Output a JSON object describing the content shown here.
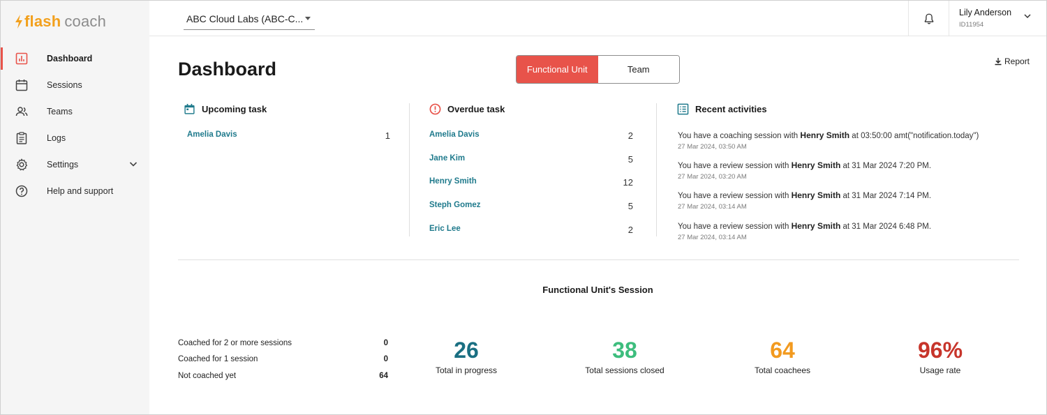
{
  "brand": {
    "flash": "flash",
    "coach": "coach",
    "flash_color": "#f2a01d",
    "coach_color": "#8c8c8c"
  },
  "accent_color": "#e8534a",
  "sidebar": {
    "items": [
      {
        "label": "Dashboard",
        "icon": "bar-chart-icon",
        "active": true
      },
      {
        "label": "Sessions",
        "icon": "calendar-icon"
      },
      {
        "label": "Teams",
        "icon": "people-icon"
      },
      {
        "label": "Logs",
        "icon": "clipboard-icon"
      },
      {
        "label": "Settings",
        "icon": "gear-icon",
        "expandable": true
      },
      {
        "label": "Help and support",
        "icon": "help-circle-icon"
      }
    ]
  },
  "topbar": {
    "org_selected": "ABC Cloud Labs (ABC-C...",
    "user_name": "Lily Anderson",
    "user_id": "ID11954"
  },
  "header": {
    "title": "Dashboard",
    "toggle": {
      "active": "Functional Unit",
      "inactive": "Team"
    },
    "report_label": "Report"
  },
  "upcoming": {
    "title": "Upcoming task",
    "rows": [
      {
        "name": "Amelia Davis",
        "count": "1"
      }
    ]
  },
  "overdue": {
    "title": "Overdue task",
    "rows": [
      {
        "name": "Amelia Davis",
        "count": "2"
      },
      {
        "name": "Jane Kim",
        "count": "5"
      },
      {
        "name": "Henry Smith",
        "count": "12"
      },
      {
        "name": "Steph Gomez",
        "count": "5"
      },
      {
        "name": "Eric Lee",
        "count": "2"
      }
    ]
  },
  "recent": {
    "title": "Recent activities",
    "items": [
      {
        "pre": "You have a coaching session with",
        "who": "Henry Smith",
        "post": "at 03:50:00 amt(\"notification.today\")",
        "time": "27 Mar 2024, 03:50 AM"
      },
      {
        "pre": "You have a review session with",
        "who": "Henry Smith",
        "post": "at 31 Mar 2024 7:20 PM.",
        "time": "27 Mar 2024, 03:20 AM"
      },
      {
        "pre": "You have a review session with",
        "who": "Henry Smith",
        "post": "at 31 Mar 2024 7:14 PM.",
        "time": "27 Mar 2024, 03:14 AM"
      },
      {
        "pre": "You have a review session with",
        "who": "Henry Smith",
        "post": "at 31 Mar 2024 6:48 PM.",
        "time": "27 Mar 2024, 03:14 AM"
      }
    ]
  },
  "session": {
    "title": "Functional Unit's Session",
    "breakdown": [
      {
        "label": "Coached for 2 or more sessions",
        "value": "0"
      },
      {
        "label": "Coached for 1 session",
        "value": "0"
      },
      {
        "label": "Not coached yet",
        "value": "64"
      }
    ],
    "kpis": [
      {
        "value": "26",
        "label": "Total in progress",
        "color": "#1a6f82"
      },
      {
        "value": "38",
        "label": "Total sessions closed",
        "color": "#3dbd7d"
      },
      {
        "value": "64",
        "label": "Total coachees",
        "color": "#f29a1f"
      },
      {
        "value": "96%",
        "label": "Usage rate",
        "color": "#c7352b"
      }
    ]
  }
}
